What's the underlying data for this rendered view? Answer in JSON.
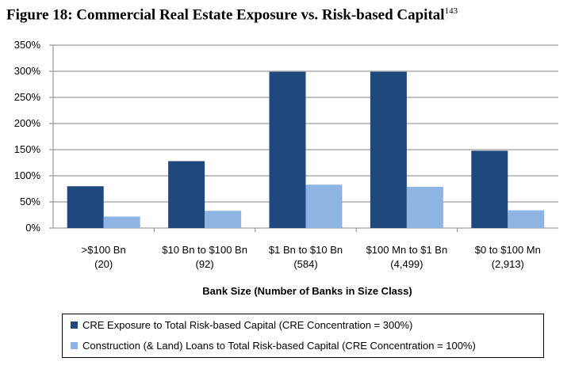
{
  "figure": {
    "title": "Figure 18: Commercial Real Estate Exposure vs. Risk-based Capital",
    "footnote": "143"
  },
  "chart_data": {
    "type": "bar",
    "title": "Figure 18: Commercial Real Estate Exposure vs. Risk-based Capital",
    "xlabel": "Bank Size (Number of Banks in Size Class)",
    "ylabel": "",
    "ylim": [
      0,
      350
    ],
    "yticks": [
      0,
      50,
      100,
      150,
      200,
      250,
      300,
      350
    ],
    "ytick_labels": [
      "0%",
      "50%",
      "100%",
      "150%",
      "200%",
      "250%",
      "300%",
      "350%"
    ],
    "grid": true,
    "legend_position": "bottom",
    "categories": [
      [
        ">$100 Bn",
        "(20)"
      ],
      [
        "$10 Bn to $100 Bn",
        "(92)"
      ],
      [
        "$1 Bn to $10 Bn",
        "(584)"
      ],
      [
        "$100 Mn to $1 Bn",
        "(4,499)"
      ],
      [
        "$0 to $100 Mn",
        "(2,913)"
      ]
    ],
    "series": [
      {
        "name": "CRE Exposure to Total Risk-based Capital (CRE Concentration = 300%)",
        "color": "#1F497D",
        "values": [
          80,
          128,
          299,
          299,
          148
        ]
      },
      {
        "name": "Construction (& Land) Loans to Total Risk-based Capital (CRE Concentration = 100%)",
        "color": "#8DB4E2",
        "values": [
          22,
          33,
          83,
          79,
          34
        ]
      }
    ]
  }
}
